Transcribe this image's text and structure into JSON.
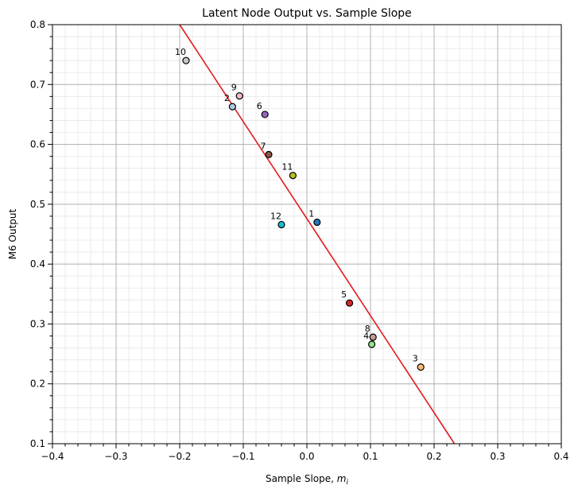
{
  "chart_data": {
    "type": "scatter",
    "title": "Latent Node Output vs. Sample Slope",
    "xlabel": "Sample Slope, ",
    "xlabel_math": "m",
    "xlabel_sub": "i",
    "ylabel": "M6 Output",
    "xlim": [
      -0.4,
      0.4
    ],
    "ylim": [
      0.1,
      0.8
    ],
    "x_ticks": [
      -0.4,
      -0.3,
      -0.2,
      -0.1,
      0.0,
      0.1,
      0.2,
      0.3,
      0.4
    ],
    "x_tick_labels": [
      "−0.4",
      "−0.3",
      "−0.2",
      "−0.1",
      "0.0",
      "0.1",
      "0.2",
      "0.3",
      "0.4"
    ],
    "y_ticks": [
      0.1,
      0.2,
      0.3,
      0.4,
      0.5,
      0.6,
      0.7,
      0.8
    ],
    "y_tick_labels": [
      "0.1",
      "0.2",
      "0.3",
      "0.4",
      "0.5",
      "0.6",
      "0.7",
      "0.8"
    ],
    "grid": {
      "major": true,
      "minor": true
    },
    "points": [
      {
        "label": "1",
        "x": 0.016,
        "y": 0.47,
        "color": "#1f77b4"
      },
      {
        "label": "2",
        "x": -0.117,
        "y": 0.663,
        "color": "#aec7e8"
      },
      {
        "label": "3",
        "x": 0.179,
        "y": 0.228,
        "color": "#ffbb78"
      },
      {
        "label": "4",
        "x": 0.102,
        "y": 0.266,
        "color": "#98df8a"
      },
      {
        "label": "5",
        "x": 0.067,
        "y": 0.335,
        "color": "#d62728"
      },
      {
        "label": "6",
        "x": -0.066,
        "y": 0.65,
        "color": "#9467bd"
      },
      {
        "label": "7",
        "x": -0.06,
        "y": 0.583,
        "color": "#8c564b"
      },
      {
        "label": "8",
        "x": 0.104,
        "y": 0.278,
        "color": "#c49c94"
      },
      {
        "label": "9",
        "x": -0.106,
        "y": 0.681,
        "color": "#f7b6d2"
      },
      {
        "label": "10",
        "x": -0.19,
        "y": 0.74,
        "color": "#c7c7c7"
      },
      {
        "label": "11",
        "x": -0.022,
        "y": 0.548,
        "color": "#bcbd22"
      },
      {
        "label": "12",
        "x": -0.04,
        "y": 0.466,
        "color": "#17becf"
      }
    ],
    "fit_line": {
      "x": [
        -0.2,
        0.232
      ],
      "y": [
        0.8,
        0.1
      ],
      "color": "#e41a1c"
    }
  }
}
